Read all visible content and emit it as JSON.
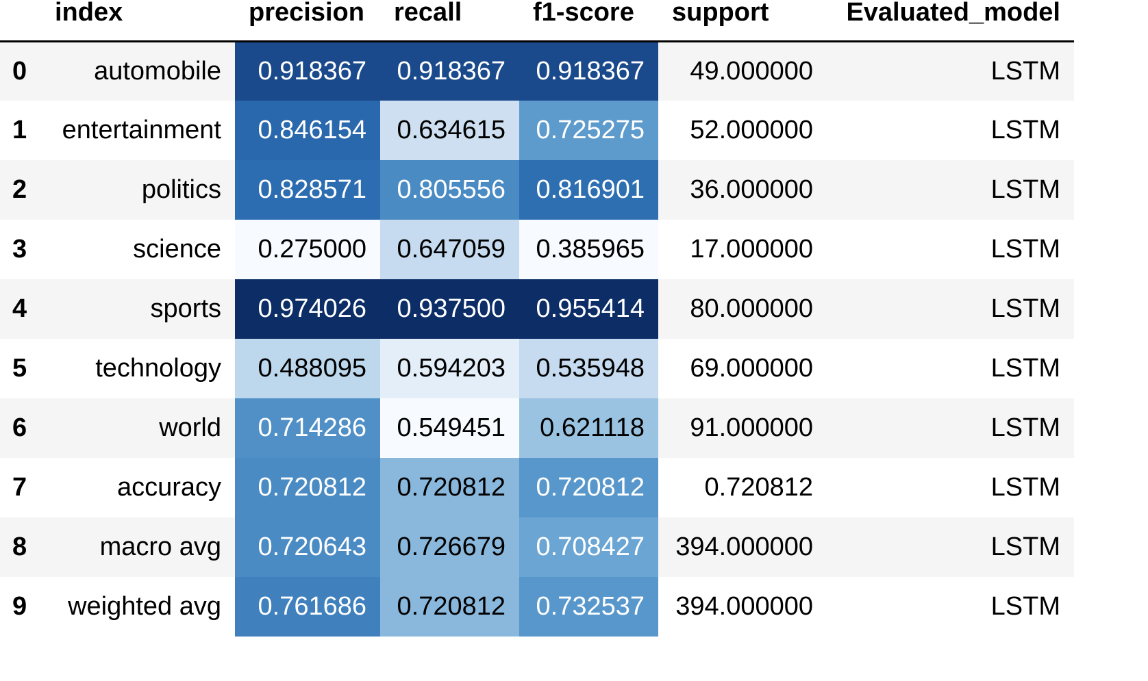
{
  "table": {
    "headers": {
      "index": "index",
      "precision": "precision",
      "recall": "recall",
      "f1": "f1-score",
      "support": "support",
      "model": "Evaluated_model"
    },
    "rows": [
      {
        "idx": "0",
        "label": "automobile",
        "precision": "0.918367",
        "recall": "0.918367",
        "f1": "0.918367",
        "support": "49.000000",
        "model": "LSTM"
      },
      {
        "idx": "1",
        "label": "entertainment",
        "precision": "0.846154",
        "recall": "0.634615",
        "f1": "0.725275",
        "support": "52.000000",
        "model": "LSTM"
      },
      {
        "idx": "2",
        "label": "politics",
        "precision": "0.828571",
        "recall": "0.805556",
        "f1": "0.816901",
        "support": "36.000000",
        "model": "LSTM"
      },
      {
        "idx": "3",
        "label": "science",
        "precision": "0.275000",
        "recall": "0.647059",
        "f1": "0.385965",
        "support": "17.000000",
        "model": "LSTM"
      },
      {
        "idx": "4",
        "label": "sports",
        "precision": "0.974026",
        "recall": "0.937500",
        "f1": "0.955414",
        "support": "80.000000",
        "model": "LSTM"
      },
      {
        "idx": "5",
        "label": "technology",
        "precision": "0.488095",
        "recall": "0.594203",
        "f1": "0.535948",
        "support": "69.000000",
        "model": "LSTM"
      },
      {
        "idx": "6",
        "label": "world",
        "precision": "0.714286",
        "recall": "0.549451",
        "f1": "0.621118",
        "support": "91.000000",
        "model": "LSTM"
      },
      {
        "idx": "7",
        "label": "accuracy",
        "precision": "0.720812",
        "recall": "0.720812",
        "f1": "0.720812",
        "support": "0.720812",
        "model": "LSTM"
      },
      {
        "idx": "8",
        "label": "macro avg",
        "precision": "0.720643",
        "recall": "0.726679",
        "f1": "0.708427",
        "support": "394.000000",
        "model": "LSTM"
      },
      {
        "idx": "9",
        "label": "weighted avg",
        "precision": "0.761686",
        "recall": "0.720812",
        "f1": "0.732537",
        "support": "394.000000",
        "model": "LSTM"
      }
    ]
  },
  "colors": {
    "row_stripe": "#f5f5f5",
    "header_rule": "#000000",
    "cell_bg": {
      "precision": [
        "#1a4a8c",
        "#2a68ad",
        "#2c6cb0",
        "#f7fbff",
        "#0c2d66",
        "#bdd7ec",
        "#5090c6",
        "#4a8bc4",
        "#4a8bc4",
        "#3f80bd"
      ],
      "recall": [
        "#1a4a8c",
        "#cddff0",
        "#4a8bc4",
        "#c6dbef",
        "#0c2d66",
        "#e3eef8",
        "#f7fbff",
        "#8ab8dc",
        "#8ab8dc",
        "#8ab8dc"
      ],
      "f1": [
        "#1a4a8c",
        "#5d9bcd",
        "#2e6fb2",
        "#f7fbff",
        "#0c2d66",
        "#c6dbef",
        "#9ac3e1",
        "#5897cb",
        "#6aa5d3",
        "#5897cb"
      ]
    },
    "cell_fg": {
      "precision": [
        "#ffffff",
        "#ffffff",
        "#ffffff",
        "#000000",
        "#ffffff",
        "#000000",
        "#ffffff",
        "#ffffff",
        "#ffffff",
        "#ffffff"
      ],
      "recall": [
        "#ffffff",
        "#000000",
        "#ffffff",
        "#000000",
        "#ffffff",
        "#000000",
        "#000000",
        "#000000",
        "#000000",
        "#000000"
      ],
      "f1": [
        "#ffffff",
        "#ffffff",
        "#ffffff",
        "#000000",
        "#ffffff",
        "#000000",
        "#000000",
        "#ffffff",
        "#ffffff",
        "#ffffff"
      ]
    }
  }
}
